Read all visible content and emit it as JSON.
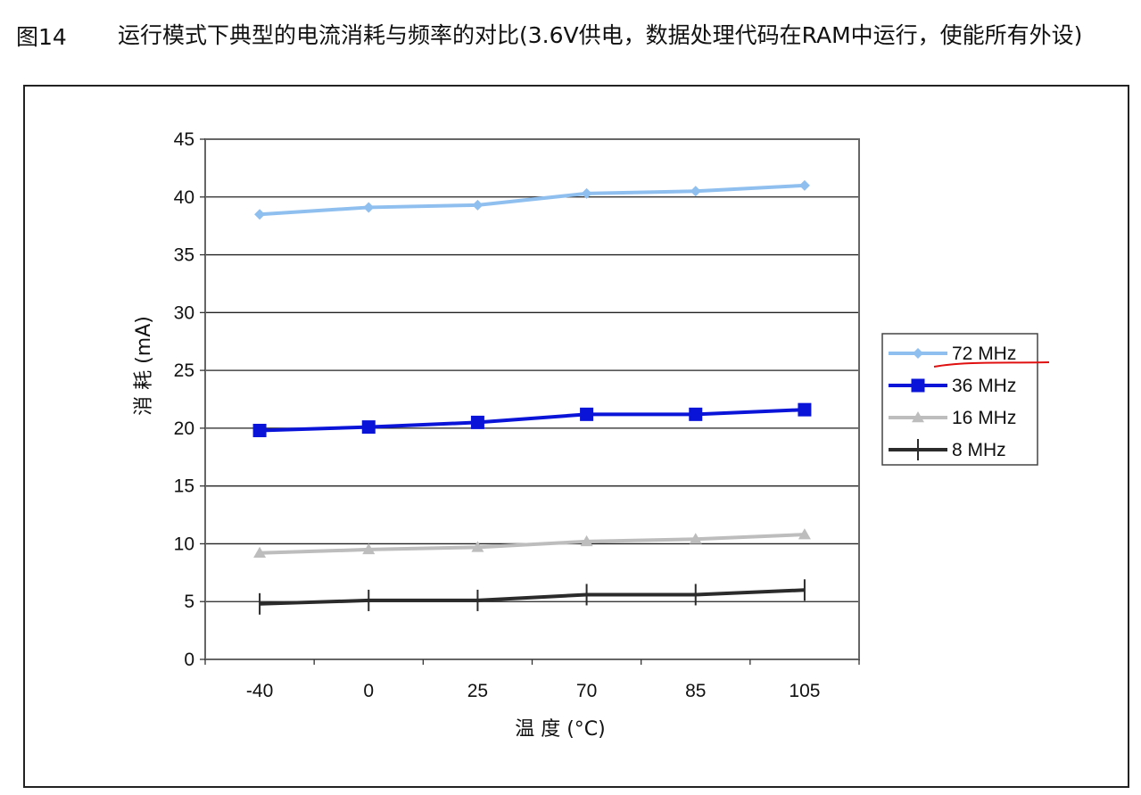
{
  "caption": {
    "figure_number": "图14",
    "title": "运行模式下典型的电流消耗与频率的对比(3.6V供电，数据处理代码在RAM中运行，使能所有外设)"
  },
  "chart_data": {
    "type": "line",
    "title": "运行模式下典型的电流消耗与频率的对比(3.6V供电，数据处理代码在RAM中运行，使能所有外设)",
    "xlabel": "温 度 (°C)",
    "ylabel": "消 耗 (mA)",
    "categories": [
      "-40",
      "0",
      "25",
      "70",
      "85",
      "105"
    ],
    "ylim": [
      0,
      45
    ],
    "yticks": [
      0,
      5,
      10,
      15,
      20,
      25,
      30,
      35,
      40,
      45
    ],
    "grid": "horizontal",
    "legend_position": "right",
    "series": [
      {
        "name": "72 MHz",
        "values": [
          38.5,
          39.1,
          39.3,
          40.3,
          40.5,
          41.0
        ],
        "color": "#8fbfef",
        "marker": "diamond"
      },
      {
        "name": "36 MHz",
        "values": [
          19.8,
          20.1,
          20.5,
          21.2,
          21.2,
          21.6
        ],
        "color": "#0a14d8",
        "marker": "square"
      },
      {
        "name": "16 MHz",
        "values": [
          9.2,
          9.5,
          9.7,
          10.2,
          10.4,
          10.8
        ],
        "color": "#bdbdbd",
        "marker": "triangle"
      },
      {
        "name": "8 MHz",
        "values": [
          4.8,
          5.1,
          5.1,
          5.6,
          5.6,
          6.0
        ],
        "color": "#2b2b2b",
        "marker": "plus"
      }
    ]
  },
  "annotation": {
    "kind": "red-handwritten-underline",
    "target": "72 MHz",
    "color": "#e01010"
  }
}
